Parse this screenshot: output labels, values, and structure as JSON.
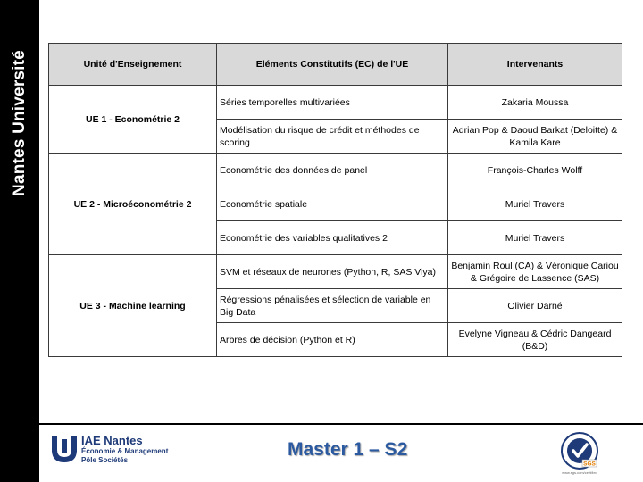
{
  "sidebar": {
    "label": "Nantes Université"
  },
  "table": {
    "headers": [
      "Unité d'Enseignement",
      "Eléments Constitutifs (EC) de l'UE",
      "Intervenants"
    ],
    "groups": [
      {
        "ue": "UE 1 - Econométrie 2",
        "rows": [
          {
            "ec": "Séries temporelles multivariées",
            "intervenants": "Zakaria Moussa"
          },
          {
            "ec": "Modélisation du risque de crédit et méthodes de scoring",
            "intervenants": "Adrian Pop  & Daoud Barkat (Deloitte) & Kamila Kare"
          }
        ]
      },
      {
        "ue": "UE 2 - Microéconométrie 2",
        "rows": [
          {
            "ec": "Econométrie des données de panel",
            "intervenants": "François-Charles Wolff"
          },
          {
            "ec": "Econométrie spatiale",
            "intervenants": "Muriel Travers"
          },
          {
            "ec": "Econométrie des variables qualitatives 2",
            "intervenants": "Muriel Travers"
          }
        ]
      },
      {
        "ue": "UE 3 - Machine learning",
        "rows": [
          {
            "ec": "SVM et réseaux de neurones (Python, R, SAS Viya)",
            "intervenants": "Benjamin Roul (CA) & Véronique Cariou & Grégoire de Lassence (SAS)"
          },
          {
            "ec": "Régressions pénalisées et sélection de variable en Big Data",
            "intervenants": "Olivier Darné"
          },
          {
            "ec": "Arbres de décision (Python et R)",
            "intervenants": "Evelyne Vigneau & Cédric Dangeard (B&D)"
          }
        ]
      }
    ]
  },
  "footer": {
    "brand_name": "IAE Nantes",
    "brand_line1": "Économie & Management",
    "brand_line2": "Pôle Sociétés",
    "title": "Master 1 – S2",
    "cert_label": "SGS",
    "cert_caption": "www.sgs.com/certified"
  },
  "colors": {
    "brand": "#1e3a78",
    "title": "#2b5aa0",
    "header_fill": "#d9d9d9",
    "sidebar": "#000000"
  }
}
